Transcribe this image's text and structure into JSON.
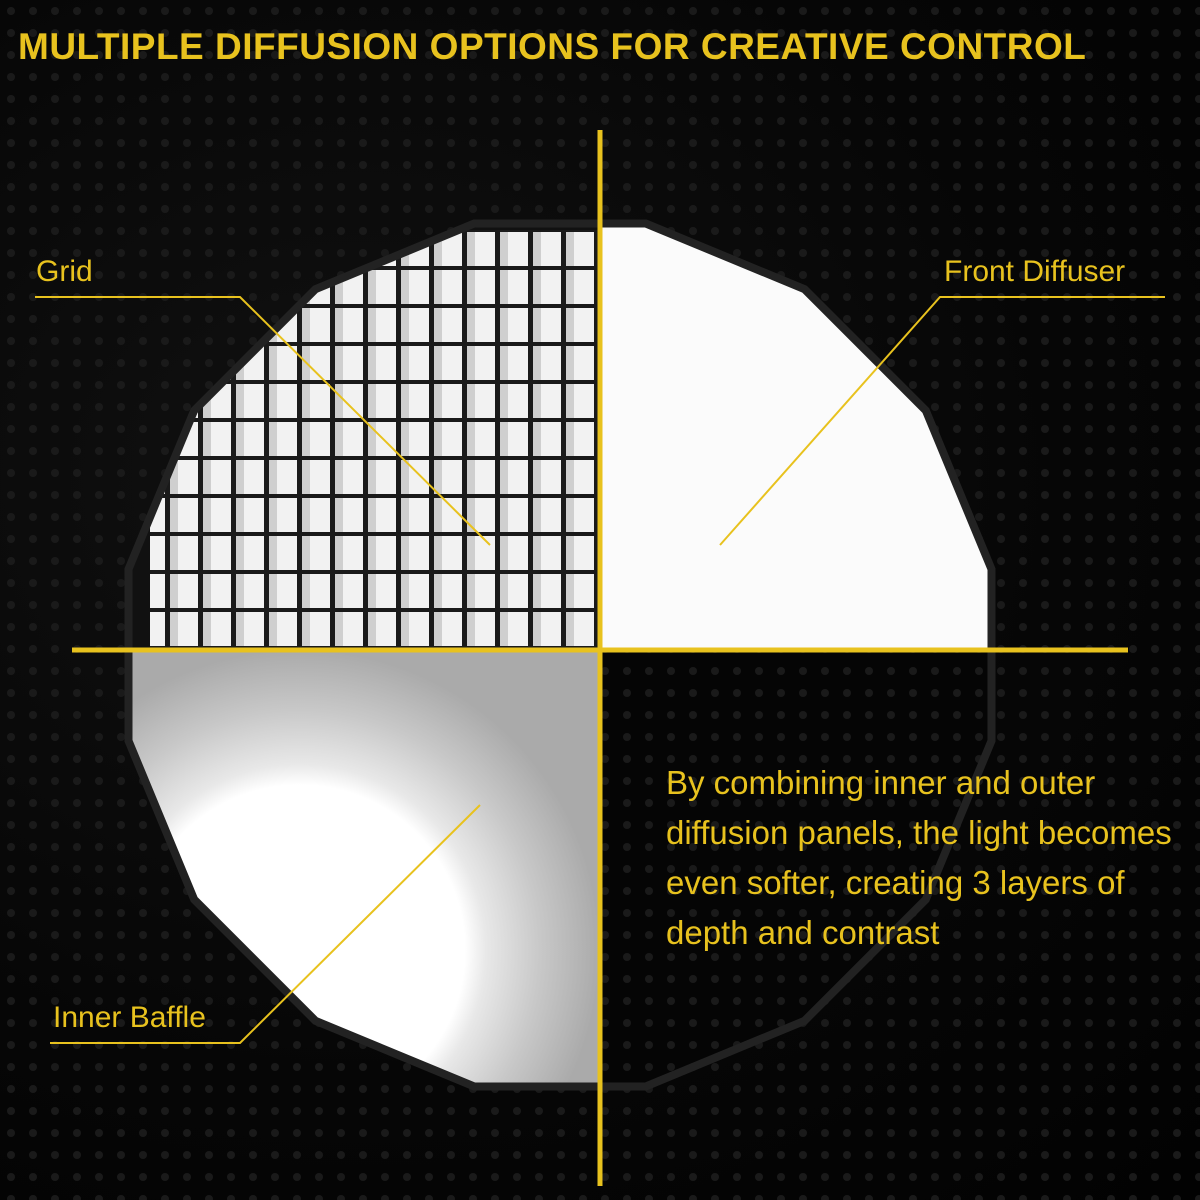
{
  "title": "MULTIPLE DIFFUSION OPTIONS FOR CREATIVE CONTROL",
  "labels": {
    "grid": "Grid",
    "front_diffuser": "Front Diffuser",
    "inner_baffle": "Inner Baffle"
  },
  "description": "By combining inner and outer diffusion panels, the light becomes even softer, creating 3 layers of depth and contrast",
  "colors": {
    "accent": "#e8c21e",
    "background": "#050505"
  }
}
